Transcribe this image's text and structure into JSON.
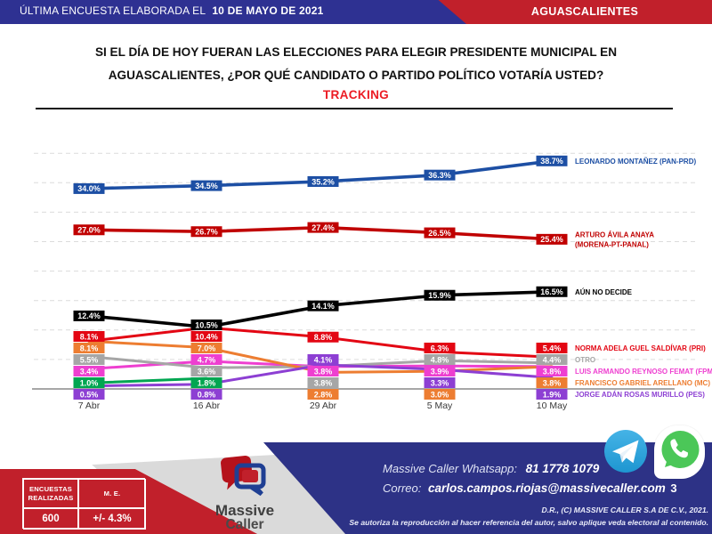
{
  "header": {
    "bar_left_regular": "ÚLTIMA ENCUESTA ELABORADA EL",
    "bar_left_bold": "10 DE MAYO DE 2021",
    "bar_right": "AGUASCALIENTES"
  },
  "title": {
    "line1": "SI EL DÍA DE HOY FUERAN LAS ELECCIONES PARA ELEGIR PRESIDENTE MUNICIPAL EN",
    "line2": "AGUASCALIENTES, ¿POR QUÉ CANDIDATO O PARTIDO POLÍTICO VOTARÍA USTED?",
    "tracking": "TRACKING"
  },
  "chart_data": {
    "type": "line",
    "categories": [
      "7 Abr",
      "16 Abr",
      "29 Abr",
      "5 May",
      "10 May"
    ],
    "ylim": [
      0,
      42
    ],
    "grid": "dashed horizontal lines every 5%",
    "value_suffix": "%",
    "legend_position": "right-of-last-point",
    "series": [
      {
        "name": "LEONARDO MONTAÑEZ (PAN-PRD)",
        "legend_lines": [
          "LEONARDO MONTAÑEZ  (PAN-PRD)"
        ],
        "color": "#1d4fa4",
        "values": [
          34.0,
          34.5,
          35.2,
          36.3,
          38.7
        ]
      },
      {
        "name": "ARTURO ÁVILA ANAYA (MORENA-PT-PANAL)",
        "legend_lines": [
          "ARTURO ÁVILA ANAYA",
          "(MORENA-PT-PANAL)"
        ],
        "color": "#c00000",
        "values": [
          27.0,
          26.7,
          27.4,
          26.5,
          25.4
        ]
      },
      {
        "name": "AÚN NO DECIDE",
        "legend_lines": [
          "AÚN NO DECIDE"
        ],
        "color": "#000000",
        "values": [
          12.4,
          10.5,
          14.1,
          15.9,
          16.5
        ]
      },
      {
        "name": "NORMA ADELA GUEL SALDÍVAR (PRI)",
        "legend_lines": [
          "NORMA ADELA GUEL SALDÍVAR (PRI)"
        ],
        "color": "#e30613",
        "values": [
          8.1,
          10.4,
          8.8,
          6.3,
          5.4
        ]
      },
      {
        "name": "LUIS ARMANDO REYNOSO FEMAT (FPM)",
        "legend_lines": [
          "LUIS ARMANDO REYNOSO FEMAT (FPM)"
        ],
        "color": "#ee3fd0",
        "values": [
          3.4,
          4.7,
          3.8,
          3.9,
          3.8
        ]
      },
      {
        "name": "OTRO",
        "legend_lines": [
          "OTRO"
        ],
        "color": "#a6a6a6",
        "values": [
          5.5,
          3.6,
          3.8,
          4.8,
          4.4
        ]
      },
      {
        "name": "FRANCISCO GABRIEL ARELLANO (MC)",
        "legend_lines": [
          "FRANCISCO GABRIEL ARELLANO (MC)"
        ],
        "color": "#ed7d31",
        "values": [
          8.1,
          7.0,
          2.8,
          3.0,
          3.8
        ]
      },
      {
        "name": "",
        "legend_lines": [],
        "color": "#00a651",
        "values": [
          1.0,
          1.8,
          null,
          null,
          null
        ]
      },
      {
        "name": "JORGE ADÁN ROSAS MURILLO (PES)",
        "legend_lines": [
          "JORGE ADÁN ROSAS MURILLO (PES)"
        ],
        "color": "#8d3fd3",
        "values": [
          0.5,
          0.8,
          4.1,
          3.3,
          1.9
        ]
      }
    ]
  },
  "footer": {
    "stats_table": {
      "col1_header": "ENCUESTAS REALIZADAS",
      "col2_header": "M. E.",
      "col1_value": "600",
      "col2_value": "+/- 4.3%"
    },
    "logo": {
      "line1": "Massive",
      "line2": "Caller"
    },
    "contact": {
      "whatsapp_label": "Massive Caller Whatsapp:",
      "whatsapp_number": "81 1778 1079",
      "email_label": "Correo:",
      "email": "carlos.campos.riojas@massivecaller.com"
    },
    "page_number": "3",
    "copyright_line1": "D.R., (C) MASSIVE CALLER S.A DE C.V., 2021.",
    "copyright_line2": "Se autoriza la reproducción al hacer referencia del autor, salvo aplique veda electoral al contenido."
  },
  "colors": {
    "header_blue": "#2e3192",
    "brand_red": "#c1202b",
    "footer_blue": "#2d3286",
    "tracking_red": "#ec1c24"
  }
}
